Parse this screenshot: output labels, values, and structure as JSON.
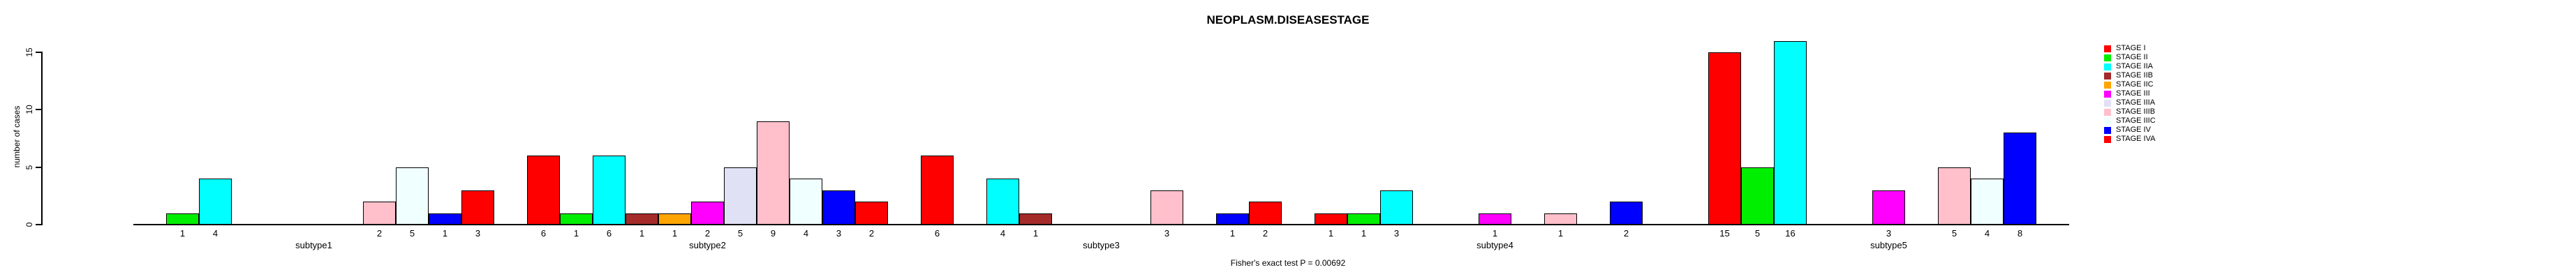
{
  "chart_data": {
    "type": "bar",
    "title": "NEOPLASM.DISEASESTAGE",
    "ylabel": "number of cases",
    "xlabel": "",
    "annotation": "Fisher's exact test P = 0.00692",
    "yticks": [
      0,
      5,
      10,
      15
    ],
    "ylim": [
      0,
      16
    ],
    "grid": false,
    "legend_position": "top-right",
    "bar_count_labels_shown": true,
    "categories": [
      "subtype1",
      "subtype2",
      "subtype3",
      "subtype4",
      "subtype5"
    ],
    "series": [
      {
        "name": "STAGE I",
        "color": "#FF0000",
        "values": [
          0,
          6,
          6,
          1,
          15
        ]
      },
      {
        "name": "STAGE II",
        "color": "#00EE00",
        "values": [
          1,
          1,
          0,
          1,
          5
        ]
      },
      {
        "name": "STAGE IIA",
        "color": "#00FFFF",
        "values": [
          4,
          6,
          4,
          3,
          16
        ]
      },
      {
        "name": "STAGE IIB",
        "color": "#A52A2A",
        "values": [
          0,
          1,
          1,
          0,
          0
        ]
      },
      {
        "name": "STAGE IIC",
        "color": "#FFA500",
        "values": [
          0,
          1,
          0,
          0,
          0
        ]
      },
      {
        "name": "STAGE III",
        "color": "#FF00FF",
        "values": [
          0,
          2,
          0,
          1,
          3
        ]
      },
      {
        "name": "STAGE IIIA",
        "color": "#E1E1F5",
        "values": [
          0,
          5,
          0,
          0,
          0
        ]
      },
      {
        "name": "STAGE IIIB",
        "color": "#FFC0CB",
        "values": [
          2,
          9,
          3,
          1,
          5
        ]
      },
      {
        "name": "STAGE IIIC",
        "color": "#F0FFFF",
        "values": [
          5,
          4,
          0,
          0,
          4
        ]
      },
      {
        "name": "STAGE IV",
        "color": "#0000FF",
        "values": [
          1,
          3,
          1,
          2,
          8
        ]
      },
      {
        "name": "STAGE IVA",
        "color": "#FF0000",
        "values": [
          3,
          2,
          2,
          0,
          0
        ]
      }
    ]
  }
}
